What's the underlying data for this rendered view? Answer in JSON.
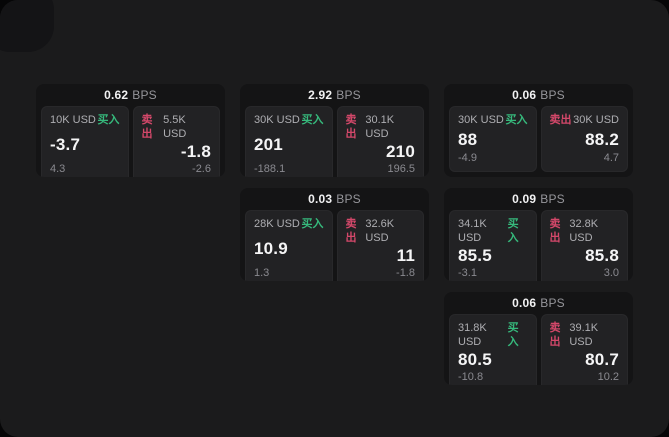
{
  "colors": {
    "surface": "#1b1b1c",
    "notch": "#141416",
    "card": "#141415",
    "panel": "#222224",
    "green": "#36b97c",
    "red": "#d4486a"
  },
  "labels": {
    "bps": "BPS",
    "buy": "买入",
    "sell": "卖出"
  },
  "cards": [
    {
      "row": 1,
      "col": 1,
      "bps": "0.62",
      "buy": {
        "amount": "10K USD",
        "value": "-3.7",
        "sub": "4.3"
      },
      "sell": {
        "amount": "5.5K USD",
        "value": "-1.8",
        "sub": "-2.6"
      }
    },
    {
      "row": 1,
      "col": 2,
      "bps": "2.92",
      "buy": {
        "amount": "30K USD",
        "value": "201",
        "sub": "-188.1"
      },
      "sell": {
        "amount": "30.1K USD",
        "value": "210",
        "sub": "196.5"
      }
    },
    {
      "row": 1,
      "col": 3,
      "bps": "0.06",
      "buy": {
        "amount": "30K USD",
        "value": "88",
        "sub": "-4.9"
      },
      "sell": {
        "amount": "30K USD",
        "value": "88.2",
        "sub": "4.7"
      }
    },
    {
      "row": 2,
      "col": 2,
      "bps": "0.03",
      "buy": {
        "amount": "28K USD",
        "value": "10.9",
        "sub": "1.3"
      },
      "sell": {
        "amount": "32.6K USD",
        "value": "11",
        "sub": "-1.8"
      }
    },
    {
      "row": 2,
      "col": 3,
      "bps": "0.09",
      "buy": {
        "amount": "34.1K USD",
        "value": "85.5",
        "sub": "-3.1"
      },
      "sell": {
        "amount": "32.8K USD",
        "value": "85.8",
        "sub": "3.0"
      }
    },
    {
      "row": 3,
      "col": 3,
      "bps": "0.06",
      "buy": {
        "amount": "31.8K USD",
        "value": "80.5",
        "sub": "-10.8"
      },
      "sell": {
        "amount": "39.1K USD",
        "value": "80.7",
        "sub": "10.2"
      }
    }
  ]
}
